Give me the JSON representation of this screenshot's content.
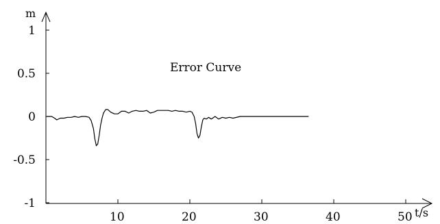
{
  "chart_data": {
    "type": "line",
    "title": "Error Curve",
    "xlabel": "t/s",
    "ylabel": "m",
    "xlim": [
      0,
      55
    ],
    "ylim": [
      -1,
      1.2
    ],
    "x_ticks": [
      {
        "value": 10,
        "label": "10"
      },
      {
        "value": 20,
        "label": "20"
      },
      {
        "value": 30,
        "label": "30"
      },
      {
        "value": 40,
        "label": "40"
      },
      {
        "value": 50,
        "label": "50"
      }
    ],
    "y_ticks": [
      {
        "value": 1,
        "label": "1"
      },
      {
        "value": 0.5,
        "label": "0.5"
      },
      {
        "value": 0,
        "label": "0"
      },
      {
        "value": -0.5,
        "label": "-0.5"
      },
      {
        "value": -1,
        "label": "-1"
      }
    ],
    "grid": false,
    "legend": "none",
    "line_color": "#000000",
    "series": [
      {
        "x": [
          0.1,
          0.8,
          1.2,
          1.5,
          2.0,
          2.5,
          3.0,
          3.5,
          4.0,
          4.5,
          5.0,
          5.5,
          6.0,
          6.3,
          6.6,
          6.8,
          7.0,
          7.2,
          7.4,
          7.6,
          7.8,
          8.0,
          8.3,
          8.6,
          9.0,
          9.5,
          10.0,
          10.5,
          11.0,
          11.5,
          12.0,
          12.5,
          13.0,
          13.5,
          14.0,
          14.5,
          15.0,
          15.5,
          16.0,
          16.5,
          17.0,
          17.5,
          18.0,
          18.5,
          19.0,
          19.5,
          20.0,
          20.3,
          20.6,
          20.8,
          21.0,
          21.2,
          21.4,
          21.6,
          21.8,
          22.0,
          22.3,
          22.6,
          23.0,
          23.5,
          24.0,
          24.5,
          25.0,
          25.5,
          26.0,
          27.0,
          28.0,
          30.0,
          32.0,
          34.0,
          36.5
        ],
        "y": [
          0.0,
          0.0,
          -0.02,
          -0.04,
          -0.02,
          -0.02,
          -0.01,
          -0.01,
          0.0,
          -0.01,
          0.0,
          0.0,
          -0.01,
          -0.05,
          -0.14,
          -0.26,
          -0.34,
          -0.32,
          -0.22,
          -0.1,
          -0.02,
          0.04,
          0.08,
          0.08,
          0.05,
          0.03,
          0.03,
          0.06,
          0.06,
          0.04,
          0.06,
          0.07,
          0.06,
          0.06,
          0.07,
          0.04,
          0.05,
          0.07,
          0.07,
          0.07,
          0.07,
          0.06,
          0.07,
          0.06,
          0.06,
          0.05,
          0.06,
          0.05,
          0.0,
          -0.08,
          -0.2,
          -0.25,
          -0.22,
          -0.12,
          -0.04,
          -0.02,
          -0.03,
          -0.01,
          -0.03,
          0.0,
          -0.03,
          -0.01,
          -0.02,
          -0.01,
          -0.02,
          0.0,
          0.0,
          0.0,
          0.0,
          0.0,
          0.0
        ]
      }
    ]
  }
}
